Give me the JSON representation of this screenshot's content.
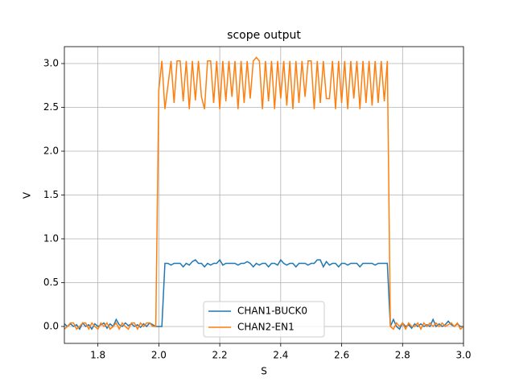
{
  "chart_data": {
    "type": "line",
    "title": "scope output",
    "x_label": "S",
    "y_label": "V",
    "xlim": [
      1.69,
      3.0
    ],
    "ylim": [
      -0.193,
      3.193
    ],
    "xticks": [
      1.8,
      {
        "value": 2,
        "label": "2.0"
      },
      2.2,
      2.4,
      2.6,
      2.8,
      {
        "value": 3,
        "label": "3.0"
      }
    ],
    "yticks": [
      {
        "value": 0,
        "label": "0.0"
      },
      0.5,
      {
        "value": 1,
        "label": "1.0"
      },
      1.5,
      {
        "value": 2,
        "label": "2.0"
      },
      2.5,
      {
        "value": 3,
        "label": "3.0"
      }
    ],
    "grid": true,
    "legend": "lower center",
    "x": [
      1.69,
      1.7,
      1.71,
      1.72,
      1.73,
      1.74,
      1.75,
      1.76,
      1.77,
      1.78,
      1.79,
      1.8,
      1.81,
      1.82,
      1.83,
      1.84,
      1.85,
      1.86,
      1.87,
      1.88,
      1.89,
      1.9,
      1.91,
      1.92,
      1.93,
      1.94,
      1.95,
      1.96,
      1.97,
      1.98,
      1.99,
      2.0,
      2.01,
      2.02,
      2.03,
      2.04,
      2.05,
      2.06,
      2.07,
      2.08,
      2.09,
      2.1,
      2.11,
      2.12,
      2.13,
      2.14,
      2.15,
      2.16,
      2.17,
      2.18,
      2.19,
      2.2,
      2.21,
      2.22,
      2.23,
      2.24,
      2.25,
      2.26,
      2.27,
      2.28,
      2.29,
      2.3,
      2.31,
      2.32,
      2.33,
      2.34,
      2.35,
      2.36,
      2.37,
      2.38,
      2.39,
      2.4,
      2.41,
      2.42,
      2.43,
      2.44,
      2.45,
      2.46,
      2.47,
      2.48,
      2.49,
      2.5,
      2.51,
      2.52,
      2.53,
      2.54,
      2.55,
      2.56,
      2.57,
      2.58,
      2.59,
      2.6,
      2.61,
      2.62,
      2.63,
      2.64,
      2.65,
      2.66,
      2.67,
      2.68,
      2.69,
      2.7,
      2.71,
      2.72,
      2.73,
      2.74,
      2.75,
      2.76,
      2.77,
      2.78,
      2.79,
      2.8,
      2.81,
      2.82,
      2.83,
      2.84,
      2.85,
      2.86,
      2.87,
      2.88,
      2.89,
      2.9,
      2.91,
      2.92,
      2.93,
      2.94,
      2.95,
      2.96,
      2.97,
      2.98,
      2.99,
      3.0
    ],
    "series": [
      {
        "name": "CHAN1-BUCK0",
        "color": "#1f77b4",
        "values": [
          0.03,
          0.0,
          0.03,
          0.0,
          0.02,
          -0.03,
          0.04,
          0.0,
          0.02,
          -0.03,
          0.03,
          0.0,
          0.02,
          0.04,
          -0.02,
          0.03,
          0.0,
          0.08,
          0.02,
          0.0,
          0.04,
          0.01,
          0.03,
          0.0,
          0.02,
          -0.01,
          0.03,
          0.0,
          0.04,
          0.02,
          0.0,
          0.0,
          0.0,
          0.72,
          0.72,
          0.7,
          0.72,
          0.72,
          0.72,
          0.68,
          0.72,
          0.7,
          0.74,
          0.76,
          0.72,
          0.72,
          0.68,
          0.72,
          0.7,
          0.72,
          0.72,
          0.76,
          0.7,
          0.72,
          0.72,
          0.72,
          0.72,
          0.7,
          0.72,
          0.72,
          0.74,
          0.72,
          0.68,
          0.72,
          0.7,
          0.72,
          0.72,
          0.68,
          0.72,
          0.72,
          0.7,
          0.76,
          0.72,
          0.7,
          0.72,
          0.72,
          0.68,
          0.72,
          0.72,
          0.72,
          0.7,
          0.72,
          0.72,
          0.76,
          0.76,
          0.68,
          0.74,
          0.7,
          0.72,
          0.72,
          0.68,
          0.72,
          0.72,
          0.7,
          0.72,
          0.72,
          0.72,
          0.68,
          0.72,
          0.72,
          0.72,
          0.72,
          0.7,
          0.72,
          0.72,
          0.72,
          0.72,
          0.0,
          0.08,
          0.0,
          -0.03,
          0.04,
          0.0,
          0.02,
          -0.02,
          0.03,
          0.0,
          0.03,
          0.0,
          0.02,
          0.0,
          0.08,
          0.0,
          0.03,
          0.0,
          0.02,
          0.06,
          0.02,
          0.0,
          0.03,
          0.0,
          0.0
        ]
      },
      {
        "name": "CHAN2-EN1",
        "color": "#ff7f0e",
        "values": [
          -0.03,
          0.0,
          0.04,
          0.04,
          -0.03,
          0.0,
          0.04,
          0.04,
          -0.03,
          0.04,
          0.0,
          -0.03,
          0.04,
          0.0,
          0.04,
          -0.03,
          0.0,
          0.04,
          -0.03,
          0.04,
          0.0,
          -0.03,
          0.04,
          0.04,
          -0.03,
          0.04,
          0.0,
          0.04,
          0.04,
          0.0,
          0.0,
          2.7,
          3.03,
          2.48,
          2.75,
          3.03,
          2.55,
          3.03,
          3.03,
          2.57,
          3.03,
          2.48,
          3.03,
          2.58,
          3.03,
          2.62,
          2.48,
          3.03,
          3.03,
          2.55,
          3.03,
          2.48,
          3.03,
          2.57,
          3.03,
          2.62,
          3.03,
          2.48,
          3.03,
          2.55,
          3.03,
          2.6,
          3.03,
          3.07,
          3.03,
          2.48,
          3.03,
          2.57,
          3.03,
          2.48,
          3.03,
          2.6,
          3.03,
          2.52,
          3.03,
          2.48,
          3.03,
          2.55,
          3.03,
          2.62,
          3.03,
          3.03,
          2.48,
          3.03,
          2.55,
          3.03,
          2.6,
          2.6,
          3.03,
          2.48,
          3.03,
          2.55,
          3.03,
          2.48,
          3.03,
          2.6,
          3.03,
          2.48,
          3.03,
          2.55,
          3.03,
          2.52,
          3.03,
          2.55,
          3.03,
          2.57,
          3.03,
          0.0,
          -0.03,
          0.04,
          0.0,
          0.04,
          -0.03,
          0.04,
          0.0,
          0.0,
          0.04,
          -0.03,
          0.04,
          0.0,
          0.04,
          0.0,
          0.04,
          0.0,
          0.04,
          0.0,
          0.02,
          0.04,
          0.0,
          0.04,
          -0.03,
          0.0
        ]
      }
    ]
  }
}
